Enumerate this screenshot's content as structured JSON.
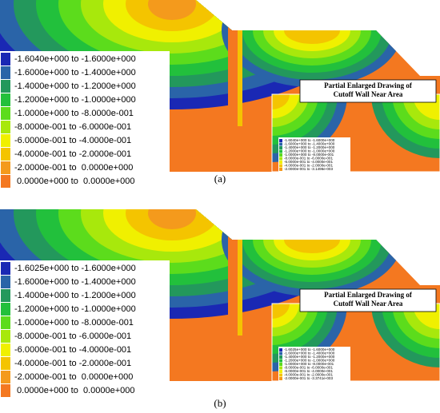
{
  "panels": [
    {
      "label": "(a)",
      "legend": [
        {
          "text": "-1.6040e+000 to -1.6000e+000",
          "color": "#1a28b4"
        },
        {
          "text": "-1.6000e+000 to -1.4000e+000",
          "color": "#2a64a8"
        },
        {
          "text": "-1.4000e+000 to -1.2000e+000",
          "color": "#23985c"
        },
        {
          "text": "-1.2000e+000 to -1.0000e+000",
          "color": "#22c03c"
        },
        {
          "text": "-1.0000e+000 to -8.0000e-001",
          "color": "#5cdc1c"
        },
        {
          "text": "-8.0000e-001 to -6.0000e-001",
          "color": "#a8e80c"
        },
        {
          "text": "-6.0000e-001 to -4.0000e-001",
          "color": "#f0f000"
        },
        {
          "text": "-4.0000e-001 to -2.0000e-001",
          "color": "#f4c400"
        },
        {
          "text": "-2.0000e-001 to  0.0000e+000",
          "color": "#f49a1c"
        },
        {
          "text": " 0.0000e+000 to  0.0000e+000",
          "color": "#f47820"
        }
      ],
      "inset": {
        "title": [
          "Partial Enlarged Drawing of",
          "Cutoff Wall Near Area"
        ],
        "legend": [
          "-1.6040e+000 to -1.6000e+000",
          "-1.6000e+000 to -1.4000e+000",
          "-1.4000e+000 to -1.2000e+000",
          "-1.2000e+000 to -1.0000e+000",
          "-1.0000e+000 to -8.0000e-001",
          "-8.0000e-001 to -6.0000e-001",
          "-6.0000e-001 to -4.0000e-001",
          "-4.0000e-001 to -2.0000e-001",
          "-2.0000e-001 to -3.1496e-003"
        ]
      }
    },
    {
      "label": "(b)",
      "legend": [
        {
          "text": "-1.6025e+000 to -1.6000e+000",
          "color": "#1a28b4"
        },
        {
          "text": "-1.6000e+000 to -1.4000e+000",
          "color": "#2a64a8"
        },
        {
          "text": "-1.4000e+000 to -1.2000e+000",
          "color": "#23985c"
        },
        {
          "text": "-1.2000e+000 to -1.0000e+000",
          "color": "#22c03c"
        },
        {
          "text": "-1.0000e+000 to -8.0000e-001",
          "color": "#5cdc1c"
        },
        {
          "text": "-8.0000e-001 to -6.0000e-001",
          "color": "#a8e80c"
        },
        {
          "text": "-6.0000e-001 to -4.0000e-001",
          "color": "#f0f000"
        },
        {
          "text": "-4.0000e-001 to -2.0000e-001",
          "color": "#f4c400"
        },
        {
          "text": "-2.0000e-001 to  0.0000e+000",
          "color": "#f49a1c"
        },
        {
          "text": " 0.0000e+000 to  0.0000e+000",
          "color": "#f47820"
        }
      ],
      "inset": {
        "title": [
          "Partial Enlarged Drawing of",
          "Cutoff Wall Near Area"
        ],
        "legend": [
          "-1.6025e+000 to -1.6000e+000",
          "-1.6000e+000 to -1.4000e+000",
          "-1.4000e+000 to -1.2000e+000",
          "-1.2000e+000 to -1.0000e+000",
          "-1.0000e+000 to -8.0000e-001",
          "-8.0000e-001 to -6.0000e-001",
          "-6.0000e-001 to -4.0000e-001",
          "-4.0000e-001 to -2.0000e-001",
          "-2.0000e-001 to -3.3741e-003"
        ]
      }
    }
  ]
}
